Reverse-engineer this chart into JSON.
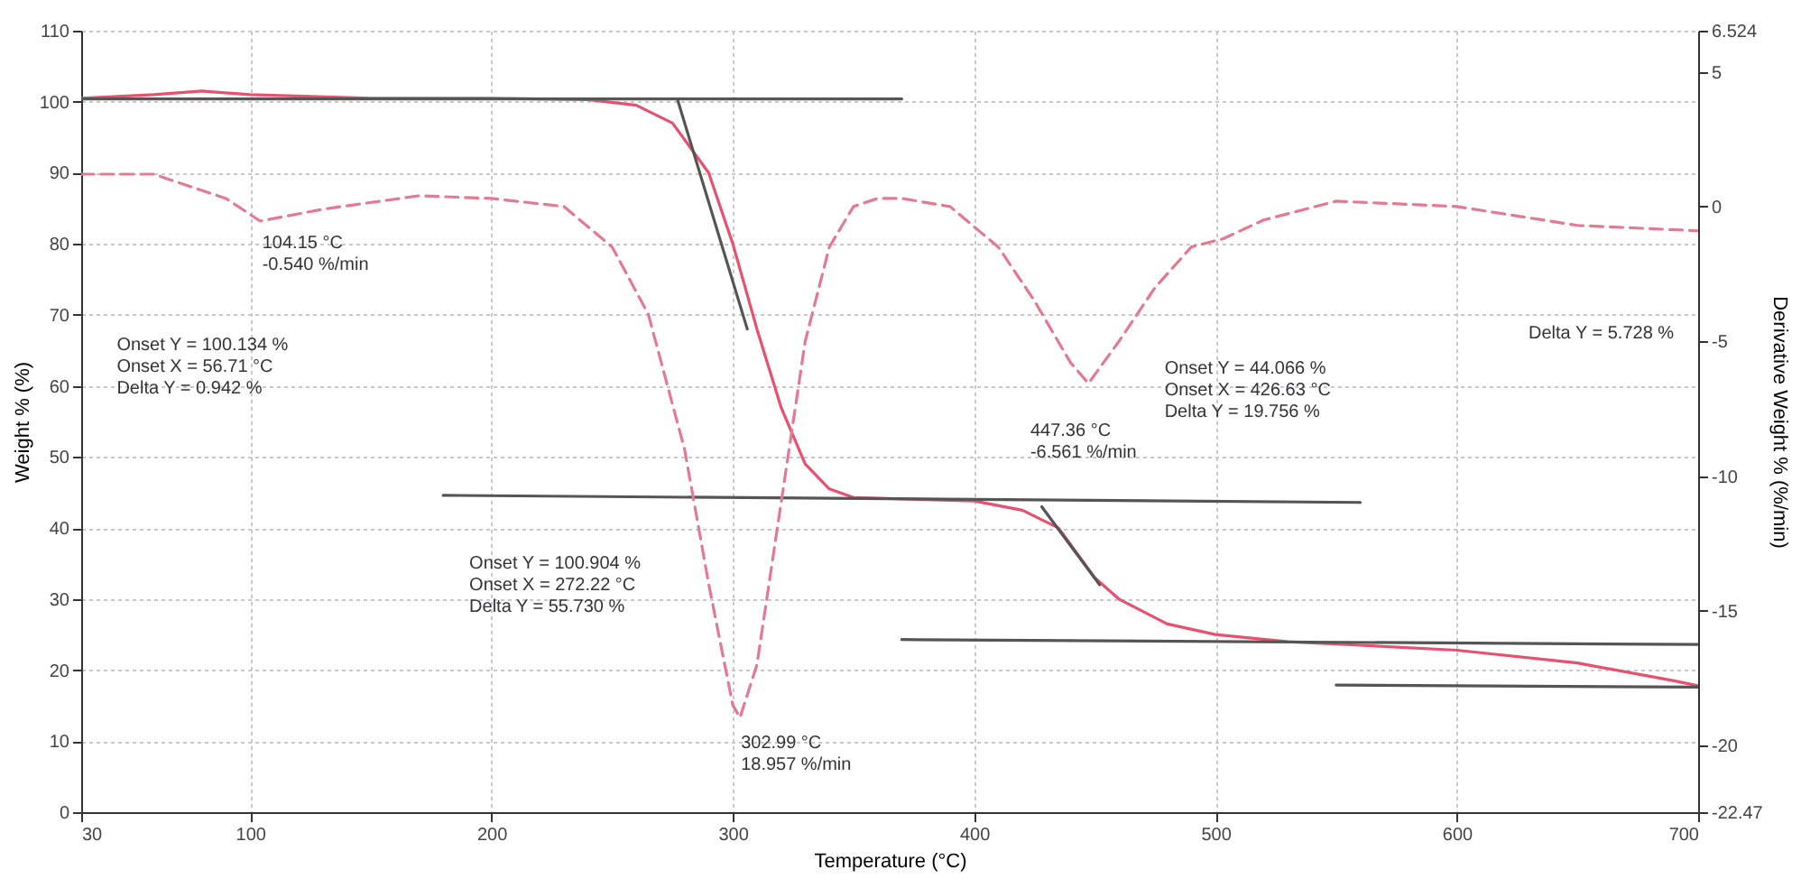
{
  "chart_data": {
    "type": "line",
    "xlabel": "Temperature (°C)",
    "ylabel": "Weight % (%)",
    "y2label": "Derivative Weight % (%/min)",
    "xlim": [
      30,
      700
    ],
    "xticks": [
      30,
      100,
      200,
      300,
      400,
      500,
      600,
      700
    ],
    "ylim": [
      0,
      110
    ],
    "yticks": [
      0,
      10,
      20,
      30,
      40,
      50,
      60,
      70,
      80,
      90,
      100,
      110
    ],
    "y2lim": [
      -22.47,
      6.524
    ],
    "y2ticks": [
      6.524,
      5,
      0,
      -5,
      -10,
      -15,
      -20,
      -22.47
    ],
    "grid": true,
    "line_style": "solid",
    "series": [
      {
        "color": "#e8506e",
        "x": [
          30,
          60,
          80,
          100,
          150,
          200,
          240,
          260,
          275,
          290,
          300,
          310,
          320,
          330,
          340,
          350,
          380,
          400,
          420,
          435,
          450,
          460,
          480,
          500,
          530,
          560,
          600,
          650,
          690,
          700
        ],
        "values": [
          100.5,
          101,
          101.5,
          101,
          100.5,
          100.5,
          100.3,
          99.5,
          97,
          90,
          80,
          68,
          57,
          49,
          45.5,
          44.3,
          44,
          43.8,
          42.5,
          40,
          33,
          30,
          26.5,
          25,
          24,
          23.5,
          22.8,
          21,
          18.5,
          17.8
        ]
      },
      {
        "color": "#e47a92",
        "axis": "y2",
        "line_style": "dashed",
        "x": [
          30,
          60,
          90,
          104.15,
          130,
          170,
          200,
          230,
          250,
          265,
          280,
          290,
          300,
          302.99,
          310,
          320,
          330,
          340,
          350,
          360,
          370,
          390,
          410,
          425,
          440,
          447.36,
          460,
          475,
          490,
          503,
          520,
          550,
          600,
          650,
          700
        ],
        "values": [
          1.2,
          1.2,
          0.3,
          -0.54,
          -0.1,
          0.4,
          0.3,
          0,
          -1.5,
          -4,
          -9,
          -14,
          -18.5,
          -18.957,
          -17,
          -11,
          -5,
          -1.5,
          0,
          0.3,
          0.3,
          0,
          -1.5,
          -3.5,
          -5.8,
          -6.561,
          -5,
          -3,
          -1.5,
          -1.2,
          -0.5,
          0.2,
          0,
          -0.7,
          -0.9
        ]
      },
      {
        "color": "#555555",
        "x": [
          30,
          370
        ],
        "values": [
          100.4,
          100.4
        ]
      },
      {
        "color": "#555555",
        "x": [
          277,
          306
        ],
        "values": [
          100.4,
          68
        ]
      },
      {
        "color": "#555555",
        "x": [
          180,
          560
        ],
        "values": [
          44.6,
          43.6
        ]
      },
      {
        "color": "#555555",
        "x": [
          428,
          452
        ],
        "values": [
          43,
          32
        ]
      },
      {
        "color": "#555555",
        "x": [
          370,
          700
        ],
        "values": [
          24.3,
          23.6
        ]
      },
      {
        "color": "#555555",
        "x": [
          550,
          700
        ],
        "values": [
          17.9,
          17.6
        ]
      }
    ],
    "annotations": [
      "104.15 °C\n-0.540 %/min",
      "Onset Y = 100.134 %\nOnset X = 56.71 °C\nDelta Y = 0.942 %",
      "Onset Y = 100.904 %\nOnset X = 272.22 °C\nDelta Y = 55.730 %",
      "302.99 °C\n18.957 %/min",
      "447.36 °C\n-6.561 %/min",
      "Onset Y = 44.066 %\nOnset X = 426.63 °C\nDelta Y = 19.756 %",
      "Delta Y = 5.728 %"
    ]
  }
}
